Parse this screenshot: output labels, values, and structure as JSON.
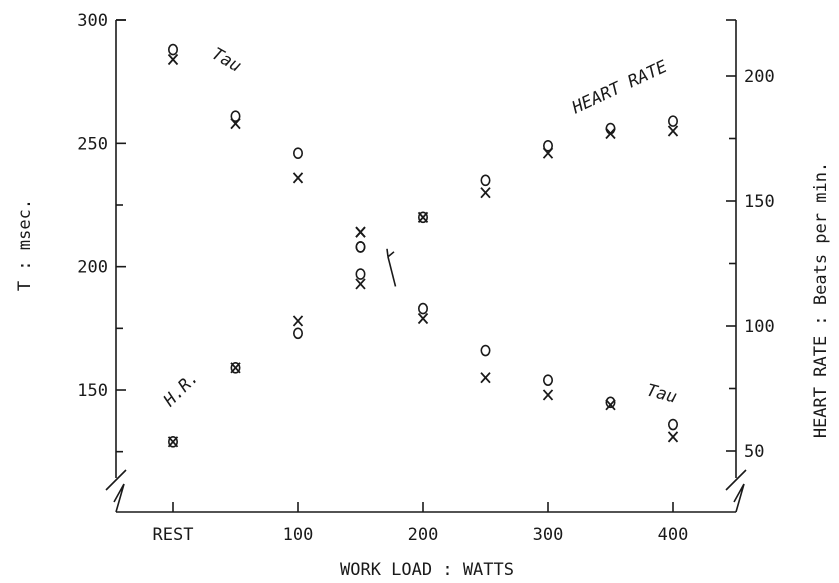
{
  "chart_data": {
    "type": "scatter",
    "xlabel": "WORK LOAD : WATTS",
    "ylabel_left": "T : msec.",
    "ylabel_right": "HEART RATE : Beats per min.",
    "x_ticks": [
      {
        "value": 0,
        "label": "REST"
      },
      {
        "value": 100,
        "label": "100"
      },
      {
        "value": 200,
        "label": "200"
      },
      {
        "value": 300,
        "label": "300"
      },
      {
        "value": 400,
        "label": "400"
      }
    ],
    "y_left_ticks": [
      150,
      200,
      250,
      300
    ],
    "y_right_ticks": [
      50,
      100,
      150,
      200
    ],
    "ylim_left": [
      118,
      300
    ],
    "ylim_right": [
      41,
      225
    ],
    "xlim": [
      -50,
      450
    ],
    "marker_legend": {
      "o": "circle",
      "x": "cross"
    },
    "annotations": [
      {
        "text": "Tau",
        "x": 30,
        "y": 285,
        "rotate": 30
      },
      {
        "text": "HEART RATE",
        "x": 322,
        "y": 262,
        "rotate": -25
      },
      {
        "text": "H.R.",
        "x": -2,
        "y": 143,
        "rotate": -45
      },
      {
        "text": "Tau",
        "x": 378,
        "y": 148,
        "rotate": 15
      }
    ],
    "arrow": {
      "from": {
        "x": 178,
        "y": 192
      },
      "to": {
        "x": 172,
        "y": 204
      }
    },
    "series": [
      {
        "name": "Tau",
        "marker": "o",
        "x": [
          0,
          50,
          100,
          150,
          150,
          200,
          250,
          300,
          350,
          400
        ],
        "y": [
          288,
          261,
          246,
          208,
          197,
          183,
          166,
          154,
          145,
          136
        ]
      },
      {
        "name": "Tau",
        "marker": "x",
        "x": [
          0,
          50,
          100,
          150,
          150,
          200,
          250,
          300,
          350,
          400
        ],
        "y": [
          284,
          258,
          236,
          214,
          193,
          179,
          155,
          148,
          144,
          131
        ]
      },
      {
        "name": "HEART RATE",
        "marker": "o",
        "x": [
          0,
          50,
          100,
          150,
          200,
          250,
          300,
          350,
          400
        ],
        "y": [
          129,
          159,
          173,
          208,
          220,
          235,
          249,
          256,
          259
        ]
      },
      {
        "name": "HEART RATE",
        "marker": "x",
        "x": [
          0,
          50,
          100,
          150,
          200,
          250,
          300,
          350,
          400
        ],
        "y": [
          129,
          159,
          178,
          214,
          220,
          230,
          246,
          254,
          255
        ]
      }
    ]
  }
}
